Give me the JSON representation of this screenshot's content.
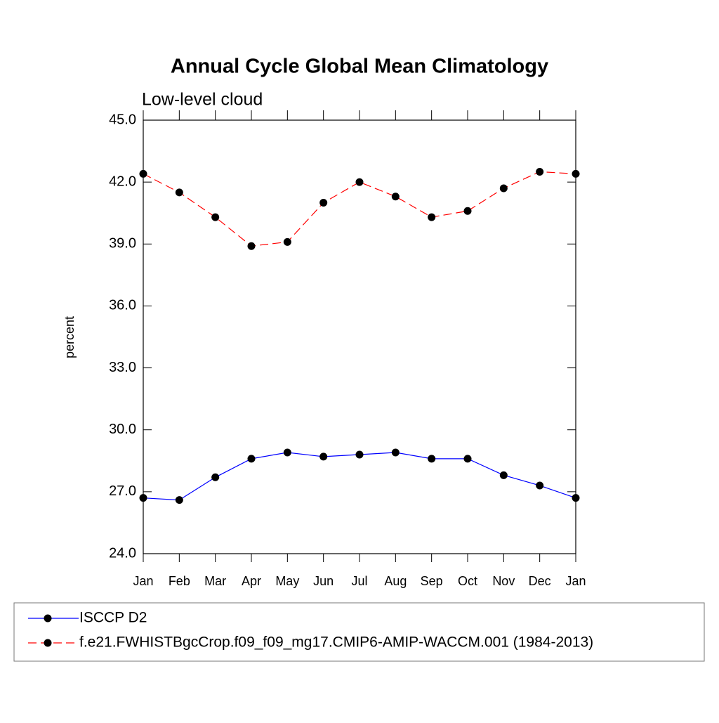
{
  "chart_data": {
    "type": "line",
    "title": "Annual Cycle Global Mean Climatology",
    "subtitle": "Low-level cloud",
    "y_label": "percent",
    "categories": [
      "Jan",
      "Feb",
      "Mar",
      "Apr",
      "May",
      "Jun",
      "Jul",
      "Aug",
      "Sep",
      "Oct",
      "Nov",
      "Dec",
      "Jan"
    ],
    "series": [
      {
        "name": "ISCCP D2",
        "color": "#0000ff",
        "dash": false,
        "values": [
          26.7,
          26.6,
          27.7,
          28.6,
          28.9,
          28.7,
          28.8,
          28.9,
          28.6,
          28.6,
          27.8,
          27.3,
          26.7
        ]
      },
      {
        "name": "f.e21.FWHISTBgcCrop.f09_f09_mg17.CMIP6-AMIP-WACCM.001 (1984-2013)",
        "color": "#ff0000",
        "dash": true,
        "values": [
          42.4,
          41.5,
          40.3,
          38.9,
          39.1,
          41.0,
          42.0,
          41.3,
          40.3,
          40.6,
          41.7,
          42.5,
          42.4
        ]
      }
    ],
    "ylim": [
      24,
      45
    ],
    "yticks": [
      {
        "value": 24,
        "label": "24.0"
      },
      {
        "value": 27,
        "label": "27.0"
      },
      {
        "value": 30,
        "label": "30.0"
      },
      {
        "value": 33,
        "label": "33.0"
      },
      {
        "value": 36,
        "label": "36.0"
      },
      {
        "value": 39,
        "label": "39.0"
      },
      {
        "value": 42,
        "label": "42.0"
      },
      {
        "value": 45,
        "label": "45.0"
      }
    ],
    "grid": false
  }
}
